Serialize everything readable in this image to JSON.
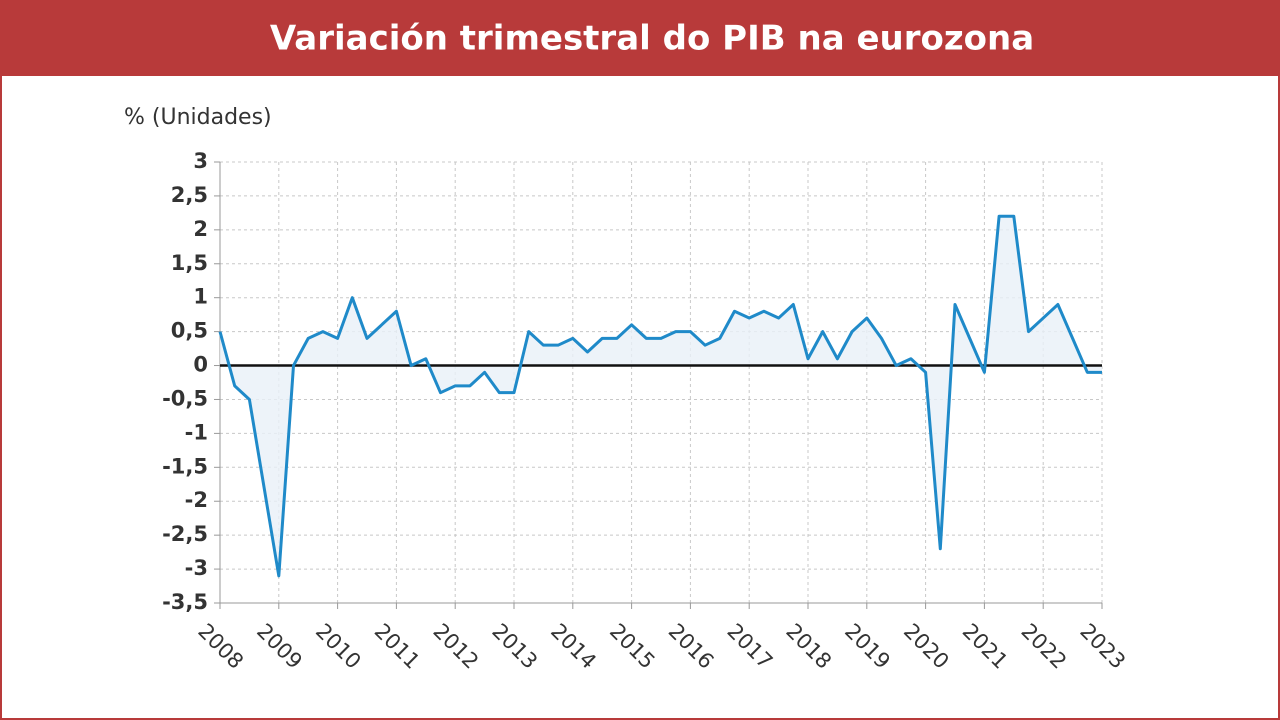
{
  "chart_data": {
    "type": "line",
    "title": "Variación trimestral do PIB na eurozona",
    "y_label": "% (Unidades)",
    "x": [
      2008,
      2008.25,
      2008.5,
      2008.75,
      2009,
      2009.25,
      2009.5,
      2009.75,
      2010,
      2010.25,
      2010.5,
      2010.75,
      2011,
      2011.25,
      2011.5,
      2011.75,
      2012,
      2012.25,
      2012.5,
      2012.75,
      2013,
      2013.25,
      2013.5,
      2013.75,
      2014,
      2014.25,
      2014.5,
      2014.75,
      2015,
      2015.25,
      2015.5,
      2015.75,
      2016,
      2016.25,
      2016.5,
      2016.75,
      2017,
      2017.25,
      2017.5,
      2017.75,
      2018,
      2018.25,
      2018.5,
      2018.75,
      2019,
      2019.25,
      2019.5,
      2019.75,
      2020,
      2020.25,
      2020.5,
      2020.75,
      2021,
      2021.25,
      2021.5,
      2021.75,
      2022,
      2022.25,
      2022.5,
      2022.75,
      2023
    ],
    "series": [
      {
        "color": "#1f8ac9",
        "values": [
          0.5,
          -0.3,
          -0.5,
          -1.8,
          -3.1,
          0.0,
          0.4,
          0.5,
          0.4,
          1.0,
          0.4,
          0.6,
          0.8,
          0.0,
          0.1,
          -0.4,
          -0.3,
          -0.3,
          -0.1,
          -0.4,
          -0.4,
          0.5,
          0.3,
          0.3,
          0.4,
          0.2,
          0.4,
          0.4,
          0.6,
          0.4,
          0.4,
          0.5,
          0.5,
          0.3,
          0.4,
          0.8,
          0.7,
          0.8,
          0.7,
          0.9,
          0.1,
          0.5,
          0.1,
          0.5,
          0.7,
          0.4,
          0.0,
          0.1,
          -0.1,
          -2.7,
          0.9,
          0.4,
          -0.1,
          2.2,
          2.2,
          0.5,
          0.7,
          0.9,
          0.4,
          -0.1,
          -0.1
        ]
      }
    ],
    "xlim": [
      2008,
      2023
    ],
    "xticks": [
      2008,
      2009,
      2010,
      2011,
      2012,
      2013,
      2014,
      2015,
      2016,
      2017,
      2018,
      2019,
      2020,
      2021,
      2022,
      2023
    ],
    "ylim": [
      -3.5,
      3
    ],
    "yticks": [
      {
        "value": -3.5,
        "label": "-3,5"
      },
      -3,
      {
        "value": -2.5,
        "label": "-2,5"
      },
      -2,
      {
        "value": -1.5,
        "label": "-1,5"
      },
      -1,
      {
        "value": -0.5,
        "label": "-0,5"
      },
      0,
      {
        "value": 0.5,
        "label": "0,5"
      },
      1,
      {
        "value": 1.5,
        "label": "1,5"
      },
      2,
      {
        "value": 2.5,
        "label": "2,5"
      },
      3
    ],
    "grid": true
  }
}
